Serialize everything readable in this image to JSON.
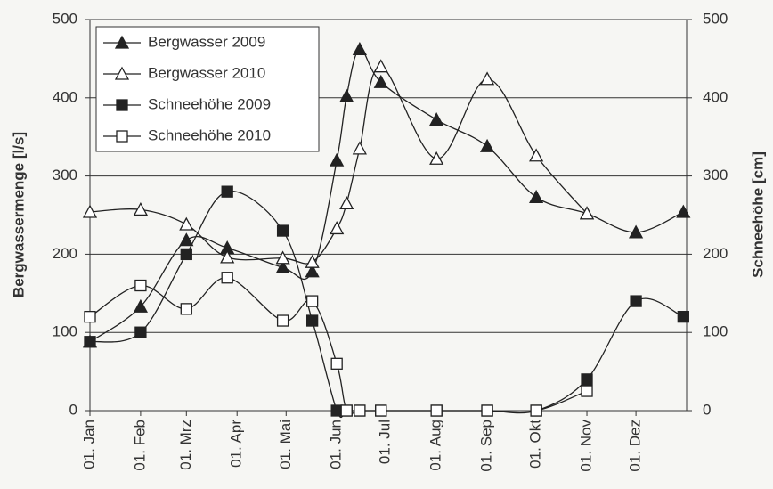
{
  "chart_data": {
    "type": "line",
    "y_label": "Bergwassermenge  [l/s]",
    "y2_label": "Schneehöhe [cm]",
    "xlim": [
      0,
      365
    ],
    "xticks": [
      {
        "value": 0,
        "label": "01. Jan"
      },
      {
        "value": 31,
        "label": "01. Feb"
      },
      {
        "value": 59,
        "label": "01. Mrz"
      },
      {
        "value": 90,
        "label": "01. Apr"
      },
      {
        "value": 120,
        "label": "01. Mai"
      },
      {
        "value": 151,
        "label": "01. Jun"
      },
      {
        "value": 181,
        "label": "01. Jul"
      },
      {
        "value": 212,
        "label": "01. Aug"
      },
      {
        "value": 243,
        "label": "01. Sep"
      },
      {
        "value": 273,
        "label": "01. Okt"
      },
      {
        "value": 304,
        "label": "01. Nov"
      },
      {
        "value": 334,
        "label": "01. Dez"
      }
    ],
    "ylim": [
      0,
      500
    ],
    "yticks": [
      0,
      100,
      200,
      300,
      400,
      500
    ],
    "y2lim": [
      0,
      500
    ],
    "y2ticks": [
      0,
      100,
      200,
      300,
      400,
      500
    ],
    "grid": true,
    "legend": "upper left",
    "series": [
      {
        "name": "Bergwasser 2009",
        "color": "#222222",
        "marker": "triangle",
        "filled": true,
        "x": [
          0,
          31,
          59,
          84,
          118,
          136,
          151,
          157,
          165,
          178,
          212,
          243,
          273,
          304,
          334,
          363
        ],
        "values": [
          88,
          133,
          218,
          208,
          183,
          178,
          320,
          402,
          462,
          420,
          372,
          338,
          273,
          252,
          228,
          254
        ]
      },
      {
        "name": "Bergwasser 2010",
        "color": "#222222",
        "marker": "triangle",
        "filled": false,
        "x": [
          0,
          31,
          59,
          84,
          118,
          136,
          151,
          157,
          165,
          178,
          212,
          243,
          273,
          304
        ],
        "values": [
          254,
          257,
          238,
          196,
          195,
          190,
          233,
          265,
          335,
          440,
          322,
          424,
          326,
          252
        ]
      },
      {
        "name": "Schneehöhe 2009",
        "color": "#222222",
        "marker": "square",
        "filled": true,
        "axis": "y2",
        "x": [
          0,
          31,
          59,
          84,
          118,
          136,
          151,
          157,
          165,
          178,
          212,
          243,
          273,
          304,
          334,
          363
        ],
        "values": [
          88,
          100,
          200,
          280,
          230,
          115,
          0,
          0,
          0,
          0,
          0,
          0,
          0,
          40,
          140,
          120
        ]
      },
      {
        "name": "Schneehöhe 2010",
        "color": "#222222",
        "marker": "square",
        "filled": false,
        "axis": "y2",
        "x": [
          0,
          31,
          59,
          84,
          118,
          136,
          151,
          157,
          165,
          178,
          212,
          243,
          273,
          304
        ],
        "values": [
          120,
          160,
          130,
          170,
          115,
          140,
          60,
          0,
          0,
          0,
          0,
          0,
          0,
          25
        ]
      }
    ]
  }
}
